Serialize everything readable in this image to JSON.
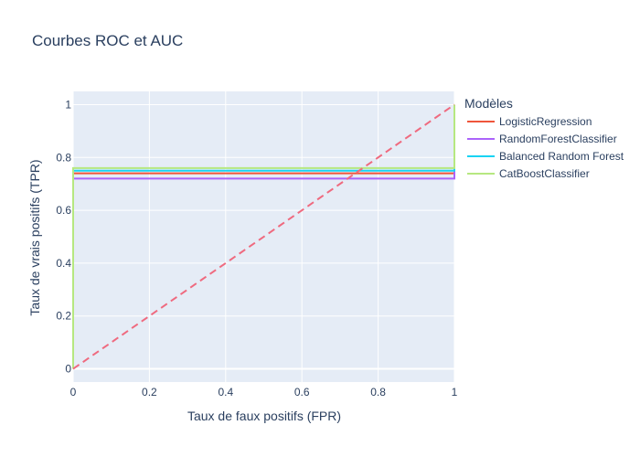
{
  "chart_data": {
    "type": "line",
    "title": "Courbes ROC et AUC",
    "xlabel": "Taux de faux positifs (FPR)",
    "ylabel": "Taux de vrais positifs (TPR)",
    "xlim": [
      0,
      1
    ],
    "ylim": [
      -0.05,
      1.05
    ],
    "x_ticks": [
      0,
      0.2,
      0.4,
      0.6,
      0.8,
      1
    ],
    "x_tick_labels": [
      "0",
      "0.2",
      "0.4",
      "0.6",
      "0.8",
      "1"
    ],
    "y_ticks": [
      0,
      0.2,
      0.4,
      0.6,
      0.8,
      1
    ],
    "y_tick_labels": [
      "0",
      "0.2",
      "0.4",
      "0.6",
      "0.8",
      "1"
    ],
    "grid": true,
    "legend_title": "Modèles",
    "legend_position": "right",
    "series": [
      {
        "name": "LogisticRegression",
        "color": "#EF553B",
        "x": [
          0,
          0,
          1,
          1
        ],
        "y": [
          0,
          0.74,
          0.74,
          1
        ]
      },
      {
        "name": "RandomForestClassifier",
        "color": "#AB63FA",
        "x": [
          0,
          0,
          1,
          1
        ],
        "y": [
          0,
          0.72,
          0.72,
          1
        ]
      },
      {
        "name": "Balanced Random Forest",
        "color": "#19D3F3",
        "x": [
          0,
          0,
          1,
          1
        ],
        "y": [
          0,
          0.75,
          0.75,
          1
        ]
      },
      {
        "name": "CatBoostClassifier",
        "color": "#B6E880",
        "x": [
          0,
          0,
          1,
          1
        ],
        "y": [
          0,
          0.76,
          0.76,
          1
        ]
      }
    ],
    "baseline": {
      "color": "#EF6A7F",
      "dash": true,
      "x": [
        0,
        1
      ],
      "y": [
        0,
        1
      ]
    }
  }
}
